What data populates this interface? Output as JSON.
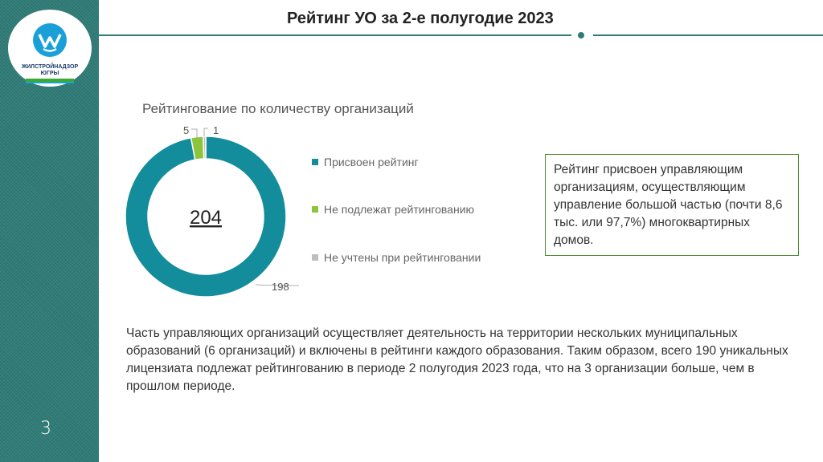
{
  "slide": {
    "title": "Рейтинг УО за 2-е полугодие 2023",
    "page_number": "3",
    "brand_color": "#2f7b76"
  },
  "logo": {
    "line1": "ЖИЛСТРОЙНАДЗОР",
    "line2": "ЮГРЫ"
  },
  "chart_data": {
    "type": "pie",
    "variant": "donut",
    "title": "Рейтингование по количеству организаций",
    "center_label": "204",
    "categories": [
      "Присвоен рейтинг",
      "Не подлежат рейтингованию",
      "Не учтены при рейтинговании"
    ],
    "values": [
      198,
      5,
      1
    ],
    "colors": [
      "#138d9b",
      "#8cc43c",
      "#bfbfbf"
    ],
    "data_labels": [
      "198",
      "5",
      "1"
    ],
    "legend_position": "right"
  },
  "note": "Рейтинг присвоен управляющим организациям, осуществляющим управление большой частью (почти 8,6 тыс. или 97,7%) многоквартирных домов.",
  "body_text": "Часть управляющих организаций осуществляет деятельность на территории нескольких муниципальных образований (6 организаций) и включены в рейтинги каждого образования. Таким образом, всего 190 уникальных лицензиата подлежат рейтингованию в периоде 2 полугодия 2023 года, что на 3 организации больше, чем в прошлом периоде."
}
